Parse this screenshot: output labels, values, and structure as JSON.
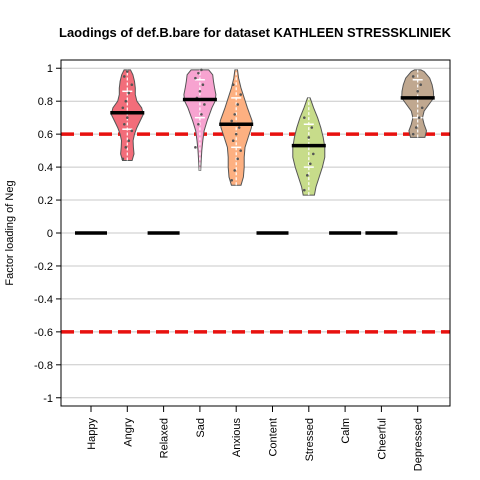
{
  "chart_data": {
    "type": "violin",
    "title": "Laodings of def.B.bare for dataset KATHLEEN STRESSKLINIEK",
    "xlabel": "",
    "ylabel": "Factor loading of Neg",
    "ylim": [
      -1.05,
      1.05
    ],
    "yticks": [
      -1,
      -0.8,
      -0.6,
      -0.4,
      -0.2,
      0,
      0.2,
      0.4,
      0.6,
      0.8,
      1
    ],
    "ytick_labels": [
      "-1",
      "-0.8",
      "-0.6",
      "-0.4",
      "-0.2",
      "0",
      "0.2",
      "0.4",
      "0.6",
      "0.8",
      "1"
    ],
    "grid": true,
    "thresholds": [
      0.6,
      -0.6
    ],
    "threshold_color": "#e8110f",
    "categories": [
      "Happy",
      "Angry",
      "Relaxed",
      "Sad",
      "Anxious",
      "Content",
      "Stressed",
      "Calm",
      "Cheerful",
      "Depressed"
    ],
    "series": [
      {
        "category": "Happy",
        "median": 0,
        "has_violin": false
      },
      {
        "category": "Angry",
        "median": 0.73,
        "has_violin": true,
        "color": "#f26d7a",
        "min": 0.44,
        "max": 0.99,
        "q1": 0.63,
        "q3": 0.86,
        "profile": [
          [
            0.44,
            0.3
          ],
          [
            0.48,
            0.42
          ],
          [
            0.52,
            0.38
          ],
          [
            0.56,
            0.36
          ],
          [
            0.6,
            0.45
          ],
          [
            0.64,
            0.6
          ],
          [
            0.68,
            0.8
          ],
          [
            0.72,
            1.0
          ],
          [
            0.76,
            0.9
          ],
          [
            0.8,
            0.6
          ],
          [
            0.84,
            0.5
          ],
          [
            0.88,
            0.5
          ],
          [
            0.92,
            0.45
          ],
          [
            0.96,
            0.35
          ],
          [
            0.99,
            0.2
          ]
        ],
        "points": [
          0.45,
          0.52,
          0.56,
          0.62,
          0.66,
          0.7,
          0.73,
          0.76,
          0.8,
          0.85,
          0.9,
          0.95,
          0.98
        ]
      },
      {
        "category": "Relaxed",
        "median": 0,
        "has_violin": false
      },
      {
        "category": "Sad",
        "median": 0.81,
        "has_violin": true,
        "color": "#f7a3d0",
        "min": 0.38,
        "max": 0.99,
        "q1": 0.7,
        "q3": 0.93,
        "profile": [
          [
            0.38,
            0.05
          ],
          [
            0.44,
            0.08
          ],
          [
            0.5,
            0.12
          ],
          [
            0.56,
            0.18
          ],
          [
            0.62,
            0.26
          ],
          [
            0.68,
            0.45
          ],
          [
            0.72,
            0.6
          ],
          [
            0.76,
            0.75
          ],
          [
            0.8,
            0.95
          ],
          [
            0.84,
            1.0
          ],
          [
            0.88,
            0.92
          ],
          [
            0.92,
            0.85
          ],
          [
            0.96,
            0.8
          ],
          [
            0.99,
            0.55
          ]
        ],
        "points": [
          0.52,
          0.66,
          0.72,
          0.78,
          0.82,
          0.86,
          0.9,
          0.94,
          0.97,
          0.99
        ]
      },
      {
        "category": "Anxious",
        "median": 0.66,
        "has_violin": true,
        "color": "#fdb081",
        "min": 0.29,
        "max": 0.99,
        "q1": 0.52,
        "q3": 0.82,
        "profile": [
          [
            0.29,
            0.3
          ],
          [
            0.34,
            0.45
          ],
          [
            0.4,
            0.5
          ],
          [
            0.46,
            0.5
          ],
          [
            0.52,
            0.55
          ],
          [
            0.58,
            0.75
          ],
          [
            0.64,
            0.95
          ],
          [
            0.68,
            1.0
          ],
          [
            0.72,
            0.85
          ],
          [
            0.76,
            0.7
          ],
          [
            0.82,
            0.5
          ],
          [
            0.88,
            0.3
          ],
          [
            0.94,
            0.15
          ],
          [
            0.99,
            0.08
          ]
        ],
        "points": [
          0.32,
          0.38,
          0.45,
          0.5,
          0.56,
          0.6,
          0.64,
          0.68,
          0.72,
          0.78,
          0.84,
          0.9
        ]
      },
      {
        "category": "Content",
        "median": 0,
        "has_violin": false
      },
      {
        "category": "Stressed",
        "median": 0.53,
        "has_violin": true,
        "color": "#c7dc8a",
        "min": 0.23,
        "max": 0.82,
        "q1": 0.4,
        "q3": 0.66,
        "profile": [
          [
            0.23,
            0.35
          ],
          [
            0.28,
            0.45
          ],
          [
            0.34,
            0.65
          ],
          [
            0.4,
            0.85
          ],
          [
            0.46,
            1.0
          ],
          [
            0.52,
            1.0
          ],
          [
            0.58,
            0.9
          ],
          [
            0.64,
            0.75
          ],
          [
            0.7,
            0.55
          ],
          [
            0.76,
            0.3
          ],
          [
            0.82,
            0.08
          ]
        ],
        "points": [
          0.26,
          0.35,
          0.42,
          0.48,
          0.53,
          0.58,
          0.64,
          0.7
        ]
      },
      {
        "category": "Calm",
        "median": 0,
        "has_violin": false
      },
      {
        "category": "Cheerful",
        "median": 0,
        "has_violin": false
      },
      {
        "category": "Depressed",
        "median": 0.82,
        "has_violin": true,
        "color": "#c0a890",
        "min": 0.58,
        "max": 0.99,
        "q1": 0.7,
        "q3": 0.93,
        "profile": [
          [
            0.58,
            0.45
          ],
          [
            0.62,
            0.55
          ],
          [
            0.66,
            0.4
          ],
          [
            0.7,
            0.3
          ],
          [
            0.74,
            0.4
          ],
          [
            0.78,
            0.7
          ],
          [
            0.82,
            1.0
          ],
          [
            0.86,
            0.98
          ],
          [
            0.9,
            0.9
          ],
          [
            0.94,
            0.75
          ],
          [
            0.98,
            0.4
          ],
          [
            0.99,
            0.2
          ]
        ],
        "points": [
          0.6,
          0.64,
          0.7,
          0.76,
          0.82,
          0.86,
          0.9,
          0.95
        ]
      }
    ]
  }
}
